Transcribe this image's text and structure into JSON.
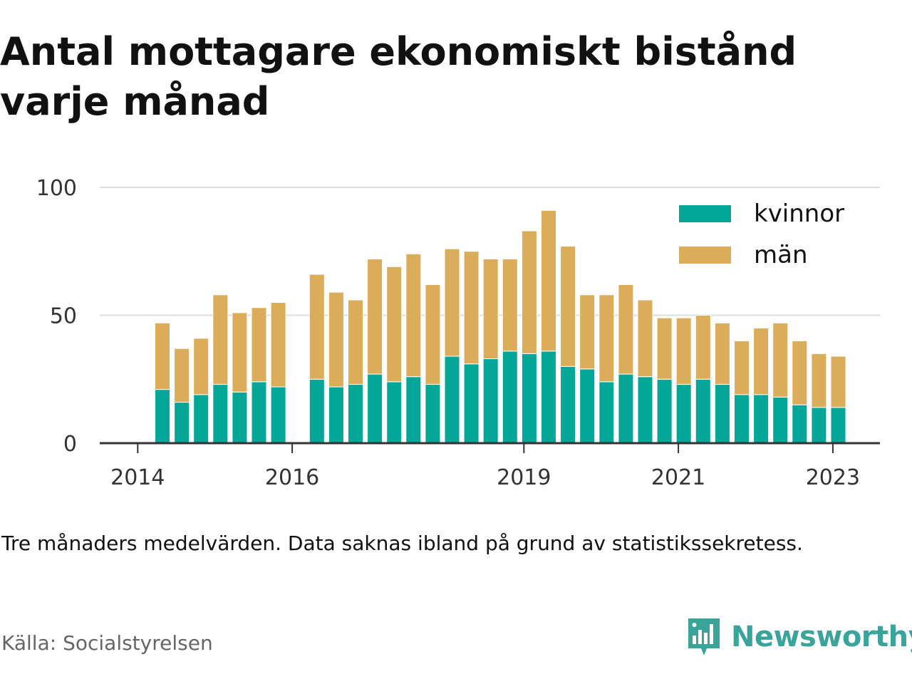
{
  "title": "Antal mottagare ekonomiskt bistånd varje månad",
  "note": "Tre månaders medelvärden. Data saknas ibland på grund av statistikssekretess.",
  "source": "Källa: Socialstyrelsen",
  "brand": {
    "name": "Newsworthy",
    "color": "#3aa49a"
  },
  "chart_data": {
    "type": "bar",
    "stacked": true,
    "ylim": [
      0,
      100
    ],
    "yticks": [
      0,
      50,
      100
    ],
    "xticks": [
      "2014",
      "2016",
      "2019",
      "2021",
      "2023"
    ],
    "grid": true,
    "legend_position": "top-right",
    "categories": [
      "2014-Q2",
      "2014-Q3",
      "2014-Q4",
      "2015-Q1",
      "2015-Q2",
      "2015-Q3",
      "2015-Q4",
      "2016-Q1",
      "2016-Q2",
      "2016-Q3",
      "2016-Q4",
      "2017-Q1",
      "2017-Q2",
      "2017-Q3",
      "2017-Q4",
      "2018-Q1",
      "2018-Q2",
      "2018-Q3",
      "2018-Q4",
      "2019-Q1",
      "2019-Q2",
      "2019-Q3",
      "2019-Q4",
      "2020-Q1",
      "2020-Q2",
      "2020-Q3",
      "2020-Q4",
      "2021-Q1",
      "2021-Q2",
      "2021-Q3",
      "2021-Q4",
      "2022-Q1",
      "2022-Q2",
      "2022-Q3",
      "2022-Q4",
      "2023-Q1"
    ],
    "series": [
      {
        "name": "kvinnor",
        "color": "#04a698",
        "values": [
          21,
          16,
          19,
          23,
          20,
          24,
          22,
          null,
          25,
          22,
          23,
          27,
          24,
          26,
          23,
          34,
          31,
          33,
          36,
          35,
          36,
          30,
          29,
          24,
          27,
          26,
          25,
          23,
          25,
          23,
          19,
          19,
          18,
          15,
          14,
          14
        ]
      },
      {
        "name": "män",
        "color": "#dbad5b",
        "values": [
          26,
          21,
          22,
          35,
          31,
          29,
          33,
          null,
          41,
          37,
          33,
          45,
          45,
          48,
          39,
          42,
          44,
          39,
          36,
          48,
          55,
          47,
          29,
          34,
          35,
          30,
          24,
          26,
          25,
          24,
          21,
          26,
          29,
          25,
          21,
          20
        ]
      }
    ]
  }
}
